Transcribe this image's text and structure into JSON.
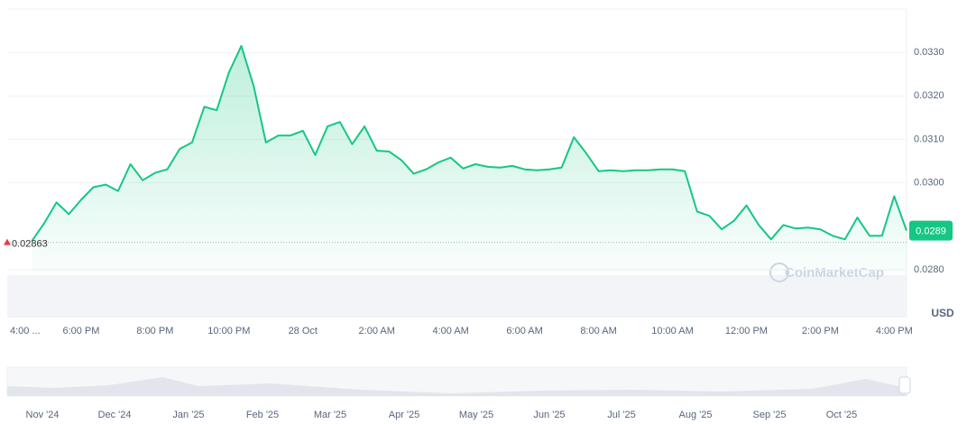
{
  "chart_data": {
    "type": "line",
    "categories": [
      "4:00 ...",
      null,
      null,
      null,
      null,
      null,
      "6:00 PM",
      null,
      null,
      null,
      null,
      null,
      "8:00 PM",
      null,
      null,
      null,
      null,
      null,
      "10:00 PM",
      null,
      null,
      null,
      null,
      null,
      "28 Oct",
      null,
      null,
      null,
      null,
      null,
      "2:00 AM",
      null,
      null,
      null,
      null,
      null,
      "4:00 AM",
      null,
      null,
      null,
      null,
      null,
      "6:00 AM",
      null,
      null,
      null,
      null,
      null,
      "8:00 AM",
      null,
      null,
      null,
      null,
      null,
      "10:00 AM",
      null,
      null,
      null,
      null,
      null,
      "12:00 PM",
      null,
      null,
      null,
      null,
      null,
      "2:00 PM",
      null,
      null,
      null,
      null,
      null,
      "4:00 PM",
      null
    ],
    "series": [
      {
        "name": "Price",
        "color": "#16c784",
        "values": [
          null,
          null,
          0.02866,
          0.02907,
          0.02955,
          0.02928,
          0.02961,
          0.0299,
          0.02996,
          0.02981,
          0.03043,
          0.03006,
          0.03023,
          0.03031,
          0.03078,
          0.03093,
          0.03175,
          0.03167,
          0.03254,
          0.03315,
          0.03223,
          0.03093,
          0.03109,
          0.03109,
          0.0312,
          0.03064,
          0.0313,
          0.0314,
          0.03089,
          0.0313,
          0.03074,
          0.03072,
          0.03052,
          0.03021,
          0.03031,
          0.03047,
          0.03058,
          0.03033,
          0.03043,
          0.03037,
          0.03035,
          0.03039,
          0.03031,
          0.03029,
          0.03031,
          0.03035,
          0.03105,
          0.03068,
          0.03027,
          0.03029,
          0.03027,
          0.03029,
          0.03029,
          0.03031,
          0.03031,
          0.03027,
          0.02934,
          0.02924,
          0.02893,
          0.02913,
          0.02948,
          0.02903,
          0.0287,
          0.02903,
          0.02895,
          0.02897,
          0.02893,
          0.02878,
          0.0287,
          0.0292,
          0.02878,
          0.02878,
          0.02969,
          0.0289
        ]
      }
    ],
    "ylim": [
      0.0269,
      0.034
    ],
    "yticks": [
      {
        "value": 0.028,
        "label": "0.0280"
      },
      {
        "value": 0.03,
        "label": "0.0300"
      },
      {
        "value": 0.031,
        "label": "0.0310"
      },
      {
        "value": 0.032,
        "label": "0.0320"
      },
      {
        "value": 0.033,
        "label": "0.0330"
      }
    ],
    "grid": true,
    "y_axis_label": "USD",
    "open_price": 0.02863,
    "current_price": 0.0289,
    "watermark": "CoinMarketCap",
    "navigator_labels": [
      "Nov '24",
      "Dec '24",
      "Jan '25",
      "Feb '25",
      "Mar '25",
      "Apr '25",
      "May '25",
      "Jun '25",
      "Jul '25",
      "Aug '25",
      "Sep '25",
      "Oct '25"
    ]
  }
}
